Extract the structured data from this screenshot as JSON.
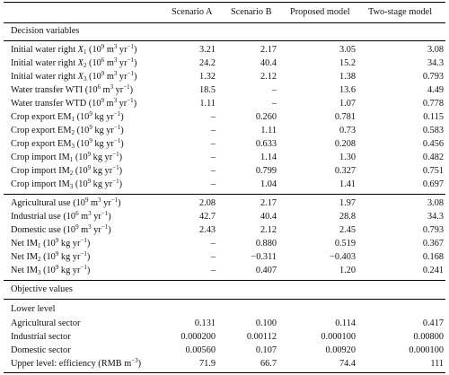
{
  "header": {
    "scenario_a": "Scenario A",
    "scenario_b": "Scenario B",
    "proposed": "Proposed model",
    "two_stage": "Two-stage model"
  },
  "sections": {
    "decision": "Decision variables",
    "objective": "Objective values",
    "lower_level": "Lower level"
  },
  "rows": [
    {
      "label": "Initial water right X1 (10^9 m^3 yr^-1)",
      "a": "3.21",
      "b": "2.17",
      "p": "3.05",
      "t": "3.08"
    },
    {
      "label": "Initial water right X2 (10^6 m^3 yr^-1)",
      "a": "24.2",
      "b": "40.4",
      "p": "15.2",
      "t": "34.3"
    },
    {
      "label": "Initial water right X3 (10^9 m^3 yr^-1)",
      "a": "1.32",
      "b": "2.12",
      "p": "1.38",
      "t": "0.793"
    },
    {
      "label": "Water transfer WTI (10^6 m^3 yr^-1)",
      "a": "18.5",
      "b": "–",
      "p": "13.6",
      "t": "4.49"
    },
    {
      "label": "Water transfer WTD (10^9 m^3 yr^-1)",
      "a": "1.11",
      "b": "–",
      "p": "1.07",
      "t": "0.778"
    },
    {
      "label": "Crop export EM1 (10^9 kg yr^-1)",
      "a": "–",
      "b": "0.260",
      "p": "0.781",
      "t": "0.115"
    },
    {
      "label": "Crop export EM2 (10^9 kg yr^-1)",
      "a": "–",
      "b": "1.11",
      "p": "0.73",
      "t": "0.583"
    },
    {
      "label": "Crop export EM3 (10^9 kg yr^-1)",
      "a": "–",
      "b": "0.633",
      "p": "0.208",
      "t": "0.456"
    },
    {
      "label": "Crop import IM1 (10^9 kg yr^-1)",
      "a": "–",
      "b": "1.14",
      "p": "1.30",
      "t": "0.482"
    },
    {
      "label": "Crop import IM2 (10^9 kg yr^-1)",
      "a": "–",
      "b": "0.799",
      "p": "0.327",
      "t": "0.751"
    },
    {
      "label": "Crop import IM3 (10^9 kg yr^-1)",
      "a": "–",
      "b": "1.04",
      "p": "1.41",
      "t": "0.697"
    },
    {
      "label": "Agricultural use (10^9 m^3 yr^-1)",
      "a": "2.08",
      "b": "2.17",
      "p": "1.97",
      "t": "3.08"
    },
    {
      "label": "Industrial use (10^6 m^3 yr^-1)",
      "a": "42.7",
      "b": "40.4",
      "p": "28.8",
      "t": "34.3"
    },
    {
      "label": "Domestic use (10^9 m^3 yr^-1)",
      "a": "2.43",
      "b": "2.12",
      "p": "2.45",
      "t": "0.793"
    },
    {
      "label": "Net IM1 (10^9 kg yr^-1)",
      "a": "–",
      "b": "0.880",
      "p": "0.519",
      "t": "0.367"
    },
    {
      "label": "Net IM2 (10^9 kg yr^-1)",
      "a": "–",
      "b": "−0.311",
      "p": "−0.403",
      "t": "0.168"
    },
    {
      "label": "Net IM3 (10^9 kg yr^-1)",
      "a": "–",
      "b": "0.407",
      "p": "1.20",
      "t": "0.241"
    },
    {
      "label": "Agricultural sector",
      "a": "0.131",
      "b": "0.100",
      "p": "0.114",
      "t": "0.417"
    },
    {
      "label": "Industrial sector",
      "a": "0.000200",
      "b": "0.00112",
      "p": "0.000100",
      "t": "0.00800"
    },
    {
      "label": "Domestic sector",
      "a": "0.00560",
      "b": "0.107",
      "p": "0.00920",
      "t": "0.000100"
    },
    {
      "label": "Upper level: efficiency (RMB m^-3)",
      "a": "71.9",
      "b": "66.7",
      "p": "74.4",
      "t": "111"
    }
  ]
}
